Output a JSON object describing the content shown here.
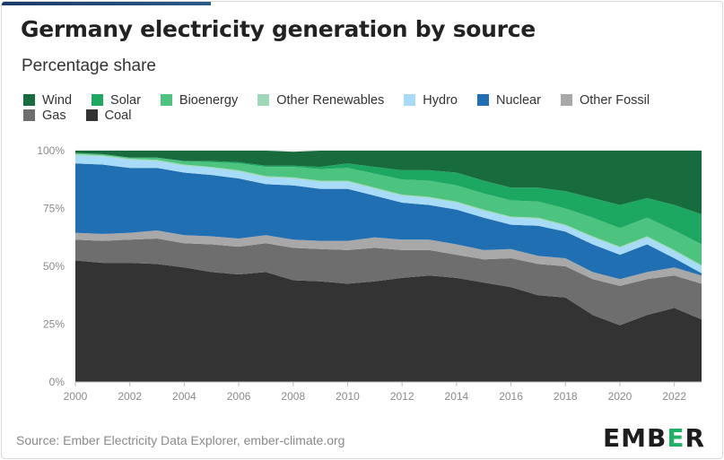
{
  "header": {
    "title": "Germany electricity generation by source",
    "subtitle": "Percentage share"
  },
  "footer": {
    "source": "Source: Ember Electricity Data Explorer, ember-climate.org",
    "logo_parts": [
      "EMB",
      "E",
      "R"
    ]
  },
  "colors": {
    "Coal": "#333333",
    "Gas": "#6e6e6e",
    "Other Fossil": "#a8a8a8",
    "Nuclear": "#1f6fb2",
    "Hydro": "#a8dbf7",
    "Other Renewables": "#9ed8b8",
    "Bioenergy": "#4cc47f",
    "Solar": "#1da862",
    "Wind": "#176b3d"
  },
  "chart_data": {
    "type": "area",
    "stacked": true,
    "legend_order": [
      "Wind",
      "Solar",
      "Bioenergy",
      "Other Renewables",
      "Hydro",
      "Nuclear",
      "Other Fossil",
      "Gas",
      "Coal"
    ],
    "x": [
      2000,
      2001,
      2002,
      2003,
      2004,
      2005,
      2006,
      2007,
      2008,
      2009,
      2010,
      2011,
      2012,
      2013,
      2014,
      2015,
      2016,
      2017,
      2018,
      2019,
      2020,
      2021,
      2022,
      2023
    ],
    "x_tick_labels": [
      "2000",
      "2002",
      "2004",
      "2006",
      "2008",
      "2010",
      "2012",
      "2014",
      "2016",
      "2018",
      "2020",
      "2022"
    ],
    "y_tick_labels": [
      "0%",
      "25%",
      "50%",
      "75%",
      "100%"
    ],
    "ylim": [
      0,
      100
    ],
    "y_unit": "%",
    "grid": true,
    "series": [
      {
        "name": "Coal",
        "values": [
          52.5,
          51.5,
          51.5,
          51,
          49.5,
          47.5,
          46.5,
          47.5,
          44,
          43.5,
          42.5,
          43.5,
          45,
          46,
          45,
          43,
          41,
          37.5,
          36.5,
          29,
          24.5,
          29,
          32,
          27
        ]
      },
      {
        "name": "Gas",
        "values": [
          9,
          9.5,
          10,
          11,
          10.5,
          12,
          12,
          12.5,
          14,
          14,
          14.5,
          14.5,
          12,
          11,
          10,
          10,
          12.5,
          13.5,
          13.5,
          15.5,
          17,
          15.5,
          14,
          15.5
        ]
      },
      {
        "name": "Other Fossil",
        "values": [
          3,
          3,
          3,
          3.5,
          3.5,
          3.5,
          3.5,
          3.5,
          3.5,
          3.5,
          4,
          4.5,
          4.5,
          4.5,
          4.5,
          4,
          4,
          3.5,
          3.5,
          3,
          3,
          3,
          3.5,
          3.5
        ]
      },
      {
        "name": "Nuclear",
        "values": [
          30,
          30,
          28,
          27,
          27,
          26.5,
          26,
          22,
          23.5,
          22.5,
          22.5,
          18,
          16,
          15,
          15,
          14,
          10.5,
          13,
          11.5,
          12,
          10.5,
          12,
          4,
          1
        ]
      },
      {
        "name": "Hydro",
        "values": [
          3.5,
          3.5,
          3.5,
          3,
          3,
          3,
          3,
          3,
          3,
          3,
          3,
          3,
          3,
          3,
          3,
          3,
          3,
          3,
          2.5,
          3,
          3,
          3,
          3,
          3
        ]
      },
      {
        "name": "Other Renewables",
        "values": [
          0.5,
          0.5,
          0.5,
          0.5,
          0.5,
          0.5,
          0.5,
          0.5,
          0.5,
          0.5,
          0.5,
          0.5,
          0.5,
          0.5,
          0.5,
          0.5,
          0.5,
          0.5,
          0.5,
          0.5,
          0.5,
          0.5,
          0.5,
          0.5
        ]
      },
      {
        "name": "Bioenergy",
        "values": [
          0.5,
          0.5,
          0.5,
          1,
          1.5,
          2,
          3,
          4,
          4.5,
          5,
          5.5,
          6,
          6.5,
          7,
          7,
          7,
          7,
          7,
          7,
          8,
          8,
          8,
          8.5,
          9
        ]
      },
      {
        "name": "Solar",
        "values": [
          0,
          0,
          0,
          0,
          0,
          0.5,
          0.5,
          0.5,
          0.5,
          1,
          2,
          3,
          4,
          4.5,
          5.5,
          5.5,
          5.5,
          6,
          7.5,
          8.5,
          10,
          8.5,
          11,
          13
        ]
      },
      {
        "name": "Wind",
        "values": [
          1,
          1.5,
          3,
          3,
          4.5,
          4.5,
          5,
          6.5,
          6,
          7,
          6,
          7,
          8.5,
          8.5,
          9.5,
          13,
          16,
          16,
          17.5,
          20.5,
          23.5,
          20.5,
          23.5,
          27.5
        ]
      }
    ]
  }
}
